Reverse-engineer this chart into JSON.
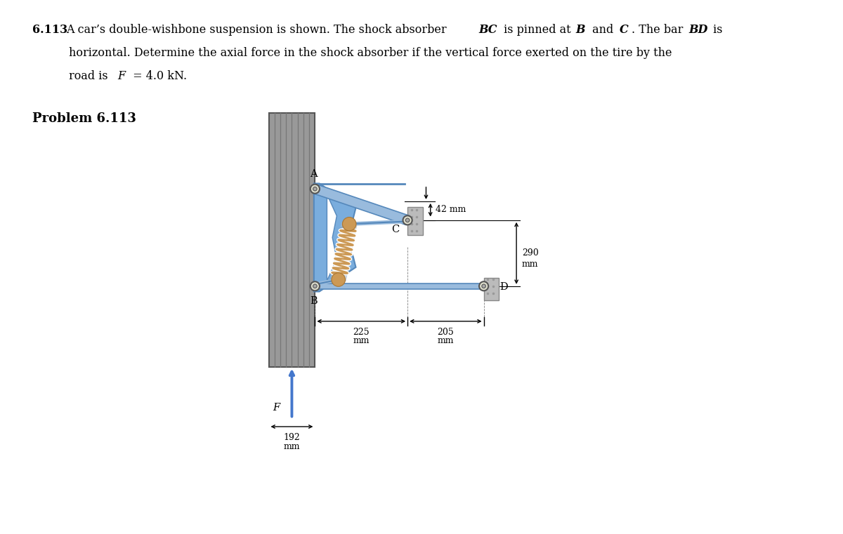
{
  "problem_number": "6.113",
  "text_line1_pre": "A car’s double-wishbone suspension is shown. The shock absorber ",
  "text_line1_BC": "BC",
  "text_line1_mid": " is pinned at ",
  "text_line1_B": "B",
  "text_line1_and": " and ",
  "text_line1_C": "C",
  "text_line1_bar": ". The bar ",
  "text_line1_BD": "BD",
  "text_line1_is": " is",
  "text_line2": "horizontal. Determine the axial force in the shock absorber if the vertical force exerted on the tire by the",
  "text_line3_pre": "road is ",
  "text_line3_F": "F",
  "text_line3_post": " = 4.0 kN.",
  "problem_label": "Problem 6.113",
  "label_A": "A",
  "label_B": "B",
  "label_C": "C",
  "label_D": "D",
  "label_F": "F",
  "dim_42": "42 mm",
  "dim_225_a": "225",
  "dim_225_b": "mm",
  "dim_205_a": "205",
  "dim_205_b": "mm",
  "dim_290_a": "290",
  "dim_290_b": "mm",
  "dim_192_a": "192",
  "dim_192_b": "mm",
  "wall_fill": "#999999",
  "wall_stripe": "#777777",
  "wishbone_fill": "#7aaddd",
  "wishbone_edge": "#5588bb",
  "bar_fill": "#99bbdd",
  "bar_edge": "#5588bb",
  "spring_coil": "#cc9955",
  "spring_tube": "#aabbcc",
  "bracket_fill": "#bbbbbb",
  "bracket_edge": "#888888",
  "pin_fill": "#ddddcc",
  "pin_edge": "#555555",
  "arrow_blue": "#4477cc",
  "dim_color": "#000000",
  "bg": "#ffffff",
  "fontsize_body": 11.5,
  "fontsize_problem": 13,
  "fontsize_label": 10.5,
  "fontsize_dim": 9
}
